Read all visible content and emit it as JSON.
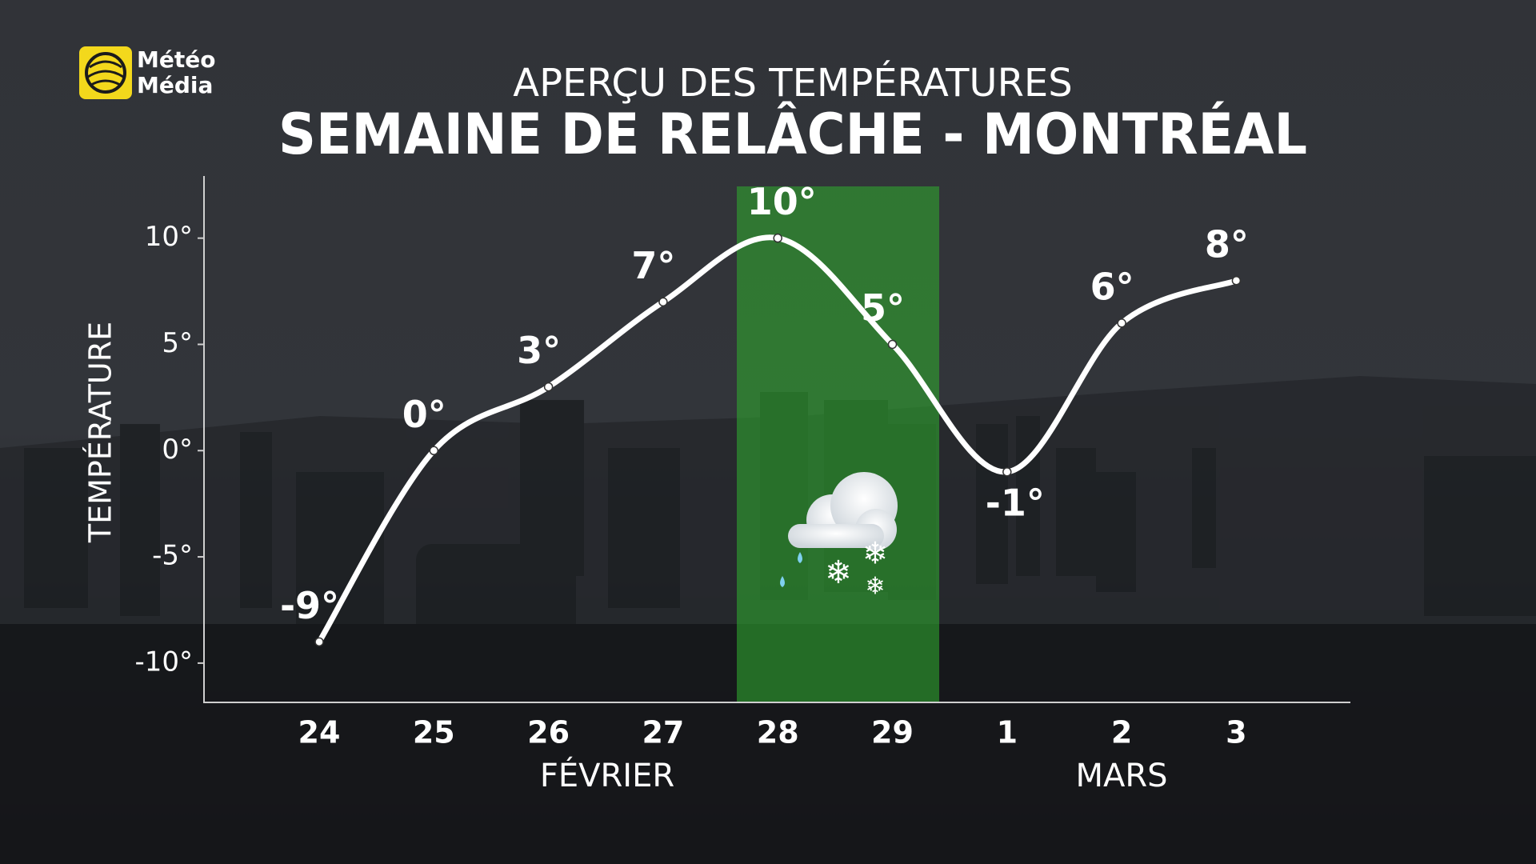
{
  "logo": {
    "line1": "Météo",
    "line2": "Média"
  },
  "chart_data": {
    "type": "line",
    "title": "APERÇU DES TEMPÉRATURES",
    "subtitle": "SEMAINE DE RELÂCHE - MONTRÉAL",
    "y_label": "TEMPÉRATURE",
    "categories": [
      "24",
      "25",
      "26",
      "27",
      "28",
      "29",
      "1",
      "2",
      "3"
    ],
    "month_labels": [
      "FÉVRIER",
      "MARS"
    ],
    "values": [
      -9,
      0,
      3,
      7,
      10,
      5,
      -1,
      6,
      8
    ],
    "value_labels": [
      "-9°",
      "0°",
      "3°",
      "7°",
      "10°",
      "5°",
      "-1°",
      "6°",
      "8°"
    ],
    "color": "#ffffff",
    "ylim": [
      -12,
      13
    ],
    "yticks": [
      {
        "value": 10,
        "label": "10°"
      },
      {
        "value": 5,
        "label": "5°"
      },
      {
        "value": 0,
        "label": "0°"
      },
      {
        "value": -5,
        "label": "-5°"
      },
      {
        "value": -10,
        "label": "-10°"
      }
    ],
    "grid": false
  }
}
